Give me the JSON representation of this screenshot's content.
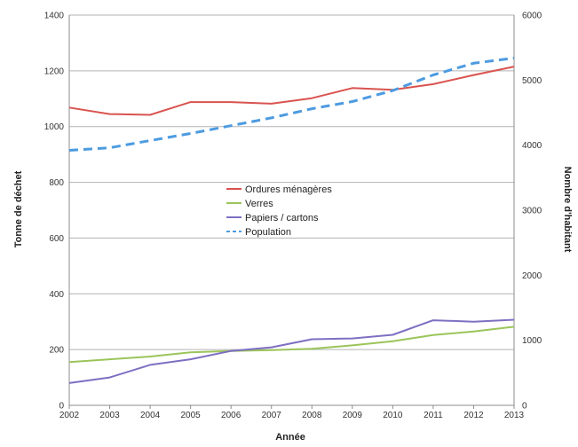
{
  "chart_data": {
    "type": "line",
    "title": "",
    "xlabel": "Année",
    "ylabel": "Tonne de déchet",
    "y2label": "Nombre d'habitant",
    "x": [
      "2002",
      "2003",
      "2004",
      "2005",
      "2006",
      "2007",
      "2008",
      "2009",
      "2010",
      "2011",
      "2012",
      "2013"
    ],
    "ylim": [
      0,
      1400
    ],
    "y2lim": [
      0,
      6000
    ],
    "yticks": [
      "0",
      "200",
      "400",
      "600",
      "800",
      "1000",
      "1200",
      "1400"
    ],
    "y2ticks": [
      "0",
      "1000",
      "2000",
      "3000",
      "4000",
      "5000",
      "6000"
    ],
    "grid": "horizontal",
    "legend_position": "center",
    "series": [
      {
        "name": "Ordures ménagères",
        "axis": "left",
        "color": "#d9534f",
        "style": "solid",
        "values": [
          1068,
          1045,
          1042,
          1088,
          1088,
          1082,
          1102,
          1138,
          1132,
          1152,
          1185,
          1215
        ]
      },
      {
        "name": "Verres",
        "axis": "left",
        "color": "#9bc45a",
        "style": "solid",
        "values": [
          155,
          165,
          175,
          190,
          195,
          198,
          203,
          215,
          230,
          252,
          265,
          282
        ]
      },
      {
        "name": "Papiers / cartons",
        "axis": "left",
        "color": "#7e6fc2",
        "style": "solid",
        "values": [
          80,
          100,
          145,
          165,
          195,
          208,
          237,
          240,
          253,
          305,
          300,
          307
        ]
      },
      {
        "name": "Population",
        "axis": "right",
        "color": "#4d9be0",
        "style": "dashed",
        "values": [
          3920,
          3960,
          4070,
          4180,
          4300,
          4420,
          4560,
          4670,
          4840,
          5080,
          5260,
          5340
        ]
      }
    ]
  }
}
